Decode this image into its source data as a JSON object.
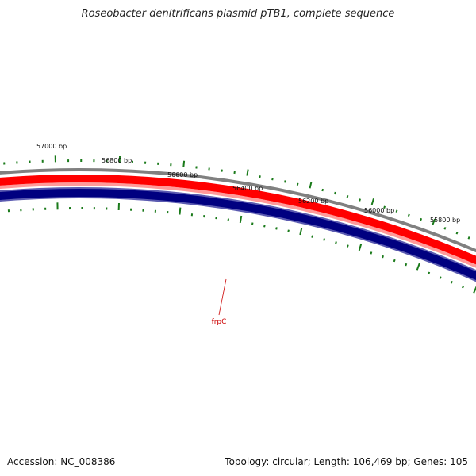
{
  "title": "Roseobacter denitrificans plasmid pTB1, complete sequence",
  "footer": {
    "accession": "Accession: NC_008386",
    "summary": "Topology: circular; Length: 106,469 bp; Genes: 105"
  },
  "ruler_labels": [
    "57000 bp",
    "56800 bp",
    "56600 bp",
    "56400 bp",
    "56200 bp",
    "56000 bp",
    "55800 bp"
  ],
  "gene_label": "frpC",
  "colors": {
    "backbone": "#808080",
    "forward_strand": "#ff0000",
    "forward_strand_light": "#ff9a9a",
    "reverse_strand": "#000080",
    "reverse_strand_edge": "#5a5ab0",
    "ticks": "#1a7a1a",
    "gene_label": "#cc0000"
  }
}
